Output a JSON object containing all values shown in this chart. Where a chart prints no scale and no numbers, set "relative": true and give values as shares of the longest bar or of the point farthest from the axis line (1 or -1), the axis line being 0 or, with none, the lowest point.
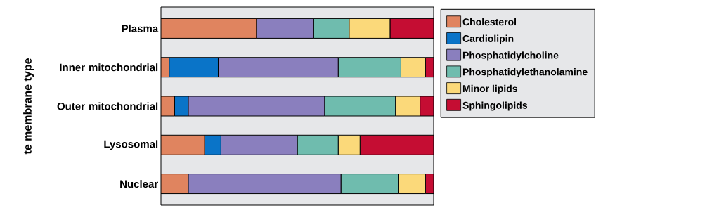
{
  "chart_data": {
    "type": "bar",
    "orientation": "horizontal",
    "stacked": true,
    "relative": true,
    "ylabel": "te membrane type",
    "legend": "right",
    "categories": [
      "Plasma",
      "Inner mitochondrial",
      "Outer mitochondrial",
      "Lysosomal",
      "Nuclear"
    ],
    "series": [
      {
        "name": "Cholesterol",
        "color": "#e0845f",
        "values": [
          0.35,
          0.03,
          0.05,
          0.16,
          0.1
        ]
      },
      {
        "name": "Cardiolipin",
        "color": "#0a74c8",
        "values": [
          0,
          0.18,
          0.05,
          0.06,
          0
        ]
      },
      {
        "name": "Phosphatidylcholine",
        "color": "#8a7fbe",
        "values": [
          0.21,
          0.44,
          0.5,
          0.28,
          0.56
        ]
      },
      {
        "name": "Phosphatidylethanolamine",
        "color": "#6fbcae",
        "values": [
          0.13,
          0.23,
          0.26,
          0.15,
          0.21
        ]
      },
      {
        "name": "Minor lipids",
        "color": "#fbd97a",
        "values": [
          0.15,
          0.09,
          0.09,
          0.08,
          0.1
        ]
      },
      {
        "name": "Sphingolipids",
        "color": "#c50d33",
        "values": [
          0.16,
          0.03,
          0.05,
          0.27,
          0.03
        ]
      }
    ]
  }
}
